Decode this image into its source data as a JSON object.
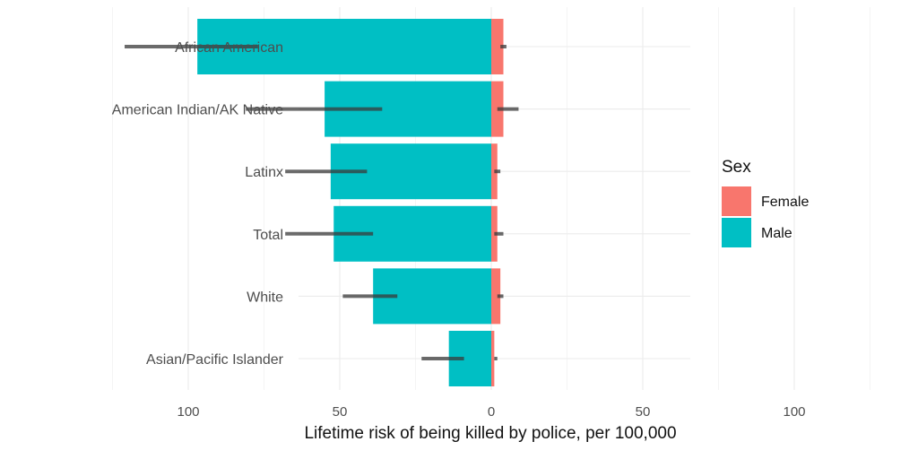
{
  "chart_data": {
    "type": "bar",
    "orientation": "horizontal",
    "style": "population pyramid (diverging)",
    "categories": [
      "African American",
      "American Indian/AK Native",
      "Latinx",
      "Total",
      "White",
      "Asian/Pacific Islander"
    ],
    "series": [
      {
        "name": "Female",
        "color": "#F8766D",
        "values": [
          4,
          4,
          2,
          2,
          3,
          1
        ],
        "error_low": [
          3,
          2,
          1,
          1,
          2,
          1
        ],
        "error_high": [
          5,
          9,
          3,
          4,
          4,
          2
        ]
      },
      {
        "name": "Male",
        "color": "#00BFC4",
        "values": [
          97,
          55,
          53,
          52,
          39,
          14
        ],
        "error_low": [
          77,
          36,
          41,
          39,
          31,
          9
        ],
        "error_high": [
          121,
          81,
          68,
          68,
          49,
          23
        ]
      }
    ],
    "xlabel": "Lifetime risk of being killed by police, per 100,000",
    "ylabel": "",
    "xlim": [
      -129,
      129
    ],
    "xticks": [
      -100,
      -50,
      0,
      50,
      100
    ],
    "xtick_labels": [
      "100",
      "50",
      "0",
      "50",
      "100"
    ],
    "grid": true,
    "legend": {
      "title": "Sex",
      "placement": "right",
      "entries": [
        {
          "label": "Female",
          "color": "#F8766D"
        },
        {
          "label": "Male",
          "color": "#00BFC4"
        }
      ]
    }
  }
}
